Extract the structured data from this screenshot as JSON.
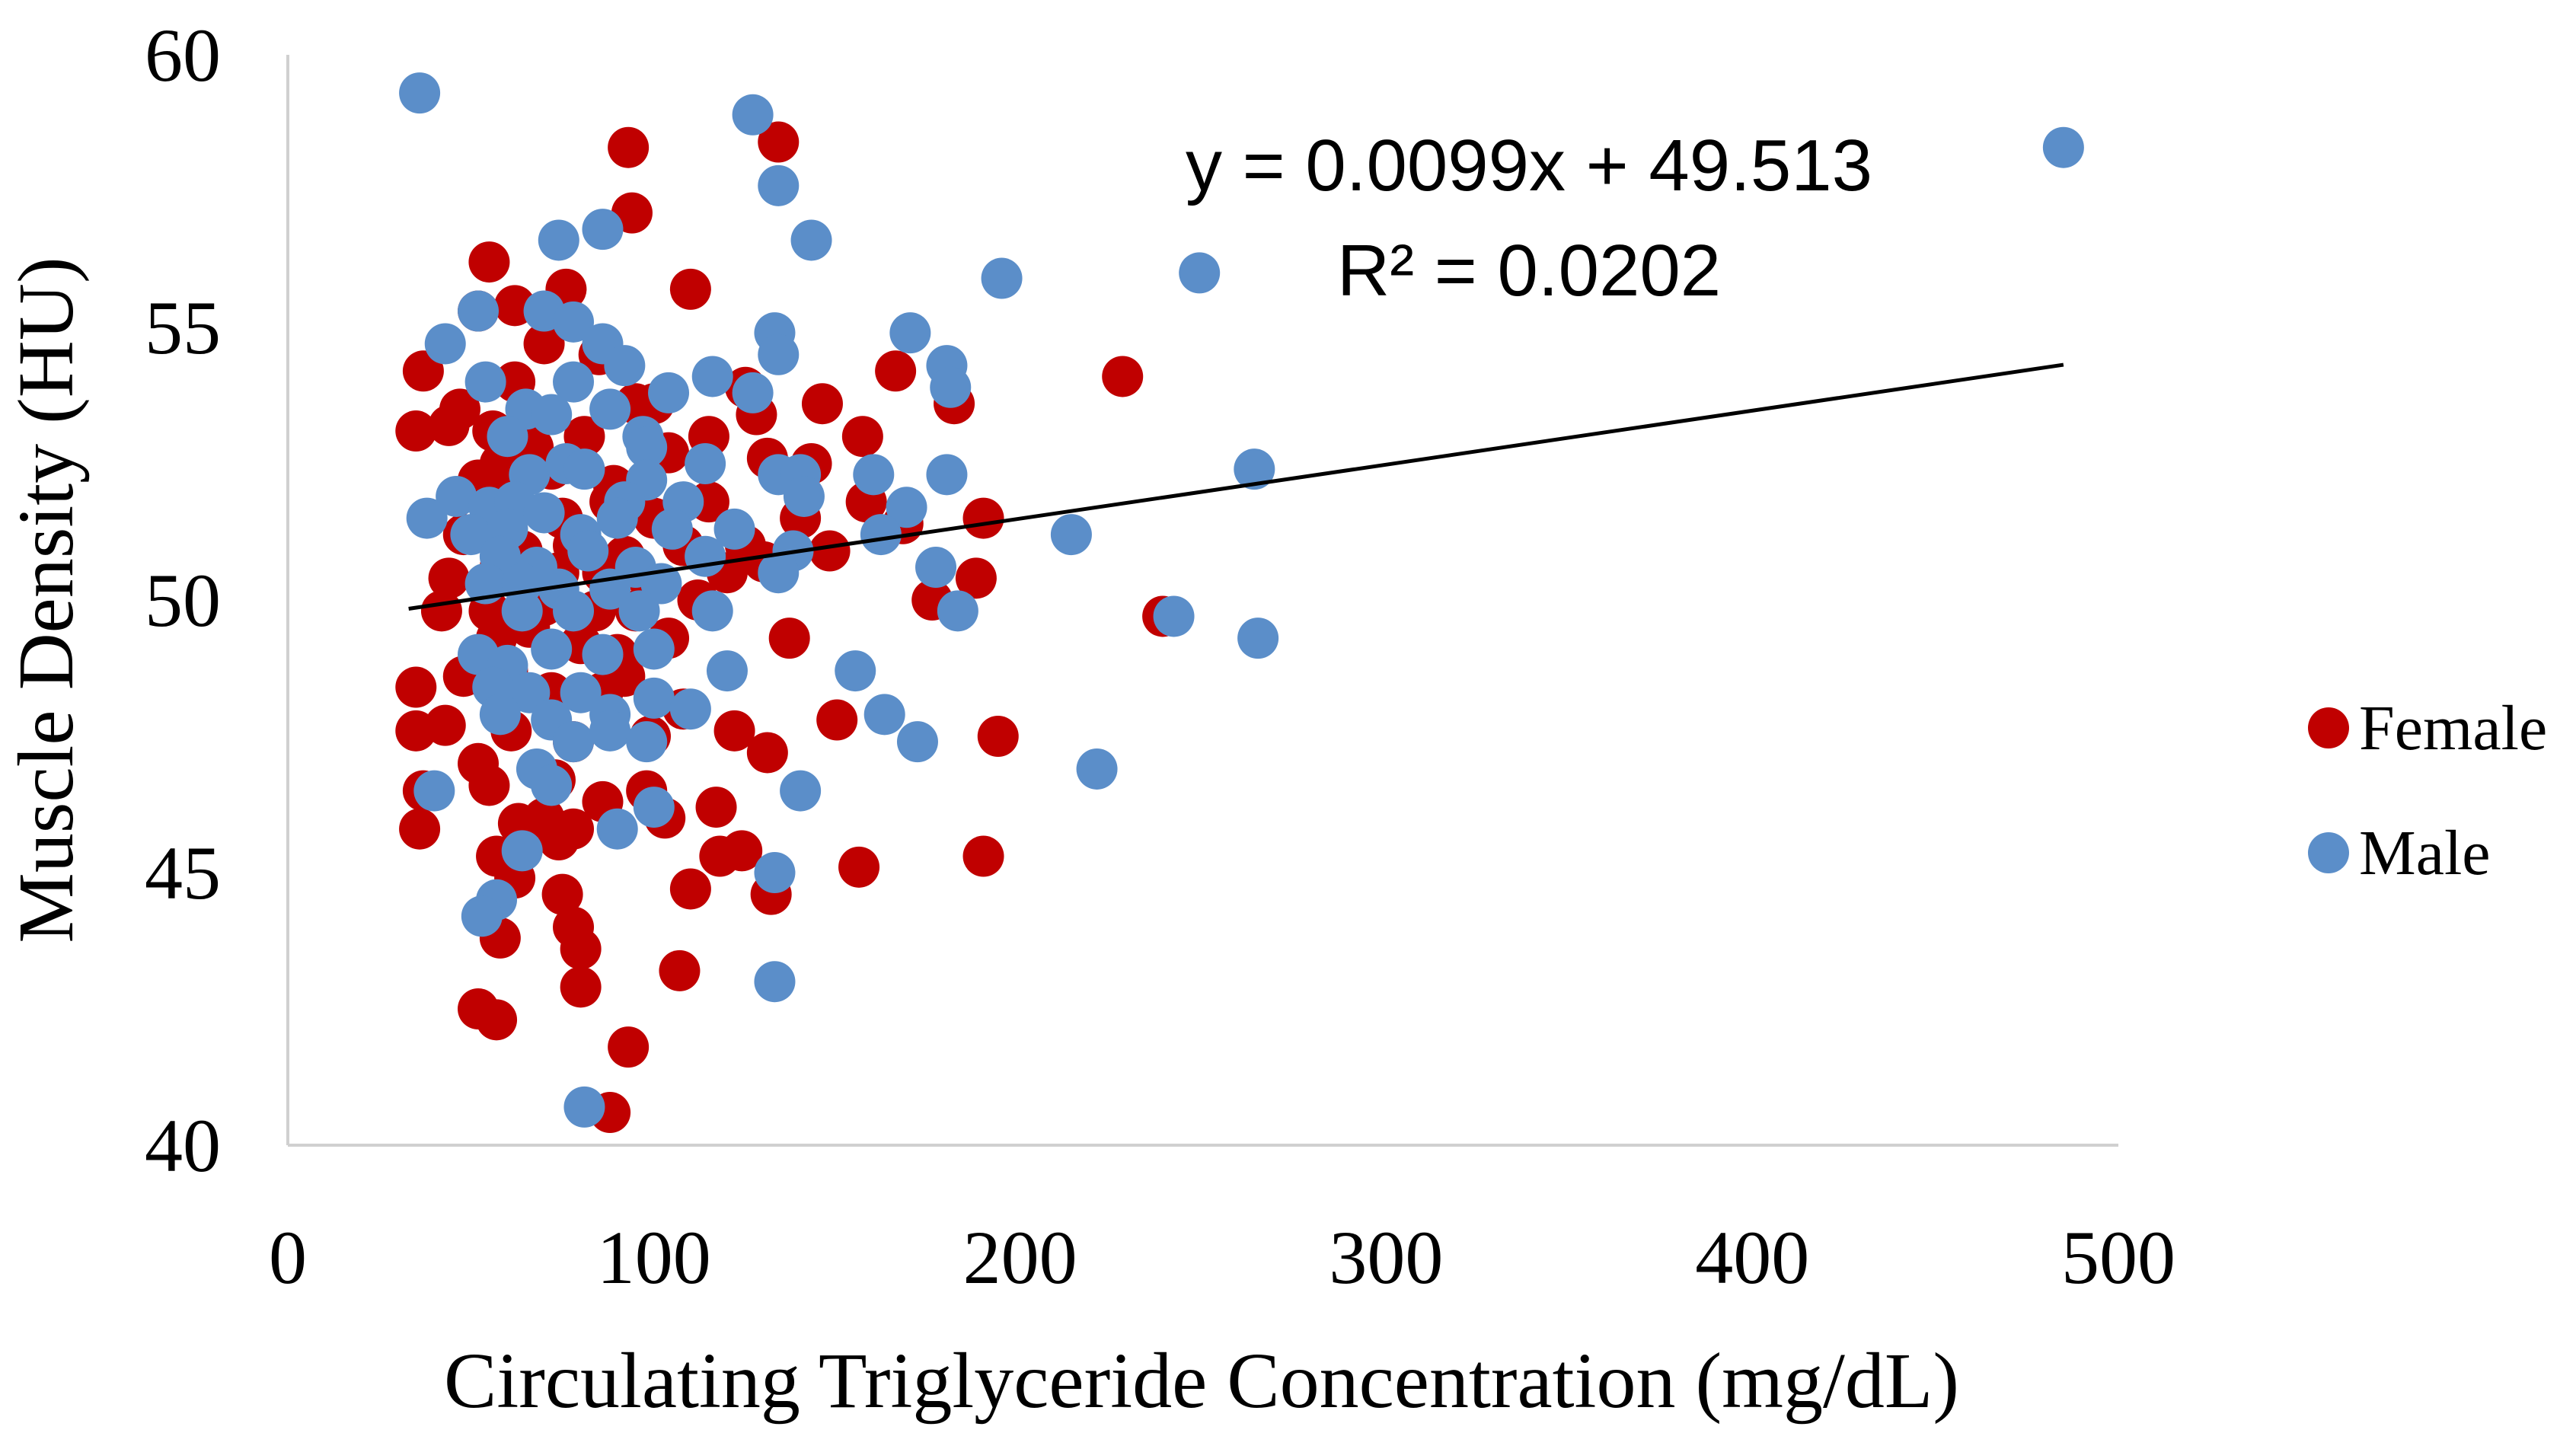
{
  "chart_data": {
    "type": "scatter",
    "title": "",
    "xlabel": "Circulating Triglyceride Concentration (mg/dL)",
    "ylabel": "Muscle Density (HU)",
    "xlim": [
      0,
      500
    ],
    "ylim": [
      40,
      60
    ],
    "xticks": [
      0,
      100,
      200,
      300,
      400,
      500
    ],
    "yticks": [
      40,
      45,
      50,
      55,
      60
    ],
    "grid": false,
    "legend_position": "right",
    "trendline": {
      "slope": 0.0099,
      "intercept": 49.513,
      "x_range": [
        33,
        485
      ],
      "equation": "y = 0.0099x + 49.513",
      "r2_label": "R² = 0.0202"
    },
    "series": [
      {
        "name": "Female",
        "color": "#c00000",
        "points": [
          [
            93,
            58.3
          ],
          [
            134,
            58.4
          ],
          [
            94,
            57.1
          ],
          [
            55,
            56.2
          ],
          [
            76,
            55.7
          ],
          [
            110,
            55.7
          ],
          [
            62,
            55.4
          ],
          [
            52,
            55.3
          ],
          [
            70,
            54.7
          ],
          [
            37,
            54.2
          ],
          [
            47,
            53.5
          ],
          [
            62,
            54.0
          ],
          [
            85,
            54.5
          ],
          [
            100,
            53.6
          ],
          [
            125,
            53.9
          ],
          [
            166,
            54.2
          ],
          [
            228,
            54.1
          ],
          [
            35,
            53.1
          ],
          [
            44,
            53.2
          ],
          [
            56,
            53.1
          ],
          [
            67,
            52.8
          ],
          [
            81,
            53.0
          ],
          [
            95,
            53.6
          ],
          [
            115,
            53.0
          ],
          [
            128,
            53.4
          ],
          [
            146,
            53.6
          ],
          [
            157,
            53.0
          ],
          [
            182,
            53.6
          ],
          [
            52,
            52.2
          ],
          [
            58,
            52.5
          ],
          [
            72,
            52.4
          ],
          [
            89,
            52.1
          ],
          [
            104,
            52.7
          ],
          [
            131,
            52.6
          ],
          [
            143,
            52.5
          ],
          [
            60,
            51.8
          ],
          [
            75,
            51.5
          ],
          [
            88,
            51.8
          ],
          [
            100,
            51.5
          ],
          [
            115,
            51.8
          ],
          [
            140,
            51.5
          ],
          [
            158,
            51.8
          ],
          [
            168,
            51.4
          ],
          [
            190,
            51.5
          ],
          [
            48,
            51.2
          ],
          [
            64,
            50.9
          ],
          [
            78,
            51.0
          ],
          [
            92,
            50.8
          ],
          [
            108,
            51.0
          ],
          [
            125,
            51.0
          ],
          [
            148,
            50.9
          ],
          [
            44,
            50.4
          ],
          [
            58,
            50.6
          ],
          [
            74,
            50.5
          ],
          [
            86,
            50.5
          ],
          [
            99,
            50.3
          ],
          [
            120,
            50.5
          ],
          [
            130,
            50.7
          ],
          [
            188,
            50.4
          ],
          [
            42,
            49.8
          ],
          [
            55,
            49.8
          ],
          [
            70,
            49.9
          ],
          [
            84,
            49.8
          ],
          [
            95,
            49.8
          ],
          [
            112,
            50.0
          ],
          [
            176,
            50.0
          ],
          [
            239,
            49.7
          ],
          [
            57,
            49.3
          ],
          [
            66,
            49.5
          ],
          [
            80,
            49.2
          ],
          [
            90,
            49.0
          ],
          [
            104,
            49.3
          ],
          [
            137,
            49.3
          ],
          [
            35,
            48.4
          ],
          [
            48,
            48.6
          ],
          [
            60,
            48.7
          ],
          [
            72,
            48.3
          ],
          [
            86,
            48.3
          ],
          [
            92,
            48.6
          ],
          [
            108,
            48.0
          ],
          [
            43,
            47.7
          ],
          [
            35,
            47.6
          ],
          [
            61,
            47.6
          ],
          [
            78,
            47.4
          ],
          [
            99,
            47.5
          ],
          [
            122,
            47.6
          ],
          [
            131,
            47.2
          ],
          [
            150,
            47.8
          ],
          [
            194,
            47.5
          ],
          [
            37,
            46.5
          ],
          [
            55,
            46.6
          ],
          [
            73,
            46.7
          ],
          [
            86,
            46.3
          ],
          [
            98,
            46.5
          ],
          [
            117,
            46.2
          ],
          [
            52,
            47.0
          ],
          [
            63,
            45.9
          ],
          [
            70,
            46.0
          ],
          [
            78,
            45.8
          ],
          [
            103,
            46.0
          ],
          [
            36,
            45.8
          ],
          [
            57,
            45.3
          ],
          [
            62,
            44.9
          ],
          [
            74,
            45.6
          ],
          [
            118,
            45.3
          ],
          [
            124,
            45.4
          ],
          [
            132,
            44.6
          ],
          [
            156,
            45.1
          ],
          [
            190,
            45.3
          ],
          [
            58,
            43.8
          ],
          [
            75,
            44.6
          ],
          [
            78,
            44.0
          ],
          [
            80,
            43.6
          ],
          [
            110,
            44.7
          ],
          [
            52,
            42.5
          ],
          [
            57,
            42.3
          ],
          [
            80,
            42.9
          ],
          [
            93,
            41.8
          ],
          [
            107,
            43.2
          ],
          [
            88,
            40.6
          ]
        ]
      },
      {
        "name": "Male",
        "color": "#5b8ec9",
        "points": [
          [
            36,
            59.3
          ],
          [
            127,
            58.9
          ],
          [
            485,
            58.3
          ],
          [
            134,
            57.6
          ],
          [
            86,
            56.8
          ],
          [
            74,
            56.6
          ],
          [
            143,
            56.6
          ],
          [
            195,
            55.9
          ],
          [
            249,
            56.0
          ],
          [
            52,
            55.3
          ],
          [
            70,
            55.3
          ],
          [
            78,
            55.1
          ],
          [
            133,
            54.9
          ],
          [
            170,
            54.9
          ],
          [
            43,
            54.7
          ],
          [
            86,
            54.7
          ],
          [
            134,
            54.5
          ],
          [
            180,
            54.3
          ],
          [
            54,
            54.0
          ],
          [
            78,
            54.0
          ],
          [
            92,
            54.3
          ],
          [
            116,
            54.1
          ],
          [
            127,
            53.8
          ],
          [
            181,
            53.9
          ],
          [
            65,
            53.5
          ],
          [
            72,
            53.4
          ],
          [
            88,
            53.5
          ],
          [
            97,
            53.0
          ],
          [
            104,
            53.8
          ],
          [
            60,
            53.0
          ],
          [
            98,
            52.8
          ],
          [
            114,
            52.5
          ],
          [
            66,
            52.3
          ],
          [
            76,
            52.5
          ],
          [
            81,
            52.4
          ],
          [
            98,
            52.2
          ],
          [
            134,
            52.3
          ],
          [
            140,
            52.3
          ],
          [
            160,
            52.3
          ],
          [
            180,
            52.3
          ],
          [
            264,
            52.4
          ],
          [
            46,
            51.9
          ],
          [
            55,
            51.7
          ],
          [
            62,
            51.8
          ],
          [
            70,
            51.6
          ],
          [
            92,
            51.8
          ],
          [
            108,
            51.8
          ],
          [
            141,
            51.9
          ],
          [
            169,
            51.7
          ],
          [
            38,
            51.5
          ],
          [
            50,
            51.2
          ],
          [
            60,
            51.3
          ],
          [
            80,
            51.2
          ],
          [
            90,
            51.5
          ],
          [
            105,
            51.3
          ],
          [
            122,
            51.3
          ],
          [
            162,
            51.2
          ],
          [
            214,
            51.2
          ],
          [
            58,
            50.8
          ],
          [
            68,
            50.6
          ],
          [
            82,
            50.9
          ],
          [
            95,
            50.6
          ],
          [
            114,
            50.8
          ],
          [
            138,
            50.9
          ],
          [
            54,
            50.3
          ],
          [
            64,
            50.3
          ],
          [
            74,
            50.2
          ],
          [
            88,
            50.2
          ],
          [
            102,
            50.3
          ],
          [
            134,
            50.5
          ],
          [
            177,
            50.6
          ],
          [
            64,
            49.8
          ],
          [
            78,
            49.8
          ],
          [
            96,
            49.8
          ],
          [
            116,
            49.8
          ],
          [
            183,
            49.8
          ],
          [
            242,
            49.7
          ],
          [
            265,
            49.3
          ],
          [
            52,
            49.0
          ],
          [
            60,
            48.8
          ],
          [
            72,
            49.1
          ],
          [
            86,
            49.0
          ],
          [
            100,
            49.1
          ],
          [
            56,
            48.4
          ],
          [
            66,
            48.3
          ],
          [
            80,
            48.3
          ],
          [
            100,
            48.2
          ],
          [
            120,
            48.7
          ],
          [
            155,
            48.7
          ],
          [
            58,
            47.9
          ],
          [
            72,
            47.8
          ],
          [
            88,
            47.9
          ],
          [
            110,
            48.0
          ],
          [
            163,
            47.9
          ],
          [
            78,
            47.4
          ],
          [
            88,
            47.6
          ],
          [
            98,
            47.4
          ],
          [
            172,
            47.4
          ],
          [
            68,
            46.9
          ],
          [
            72,
            46.6
          ],
          [
            140,
            46.5
          ],
          [
            221,
            46.9
          ],
          [
            40,
            46.5
          ],
          [
            100,
            46.2
          ],
          [
            90,
            45.8
          ],
          [
            64,
            45.4
          ],
          [
            133,
            45.0
          ],
          [
            57,
            44.5
          ],
          [
            53,
            44.2
          ],
          [
            133,
            43.0
          ],
          [
            81,
            40.7
          ]
        ]
      }
    ]
  }
}
